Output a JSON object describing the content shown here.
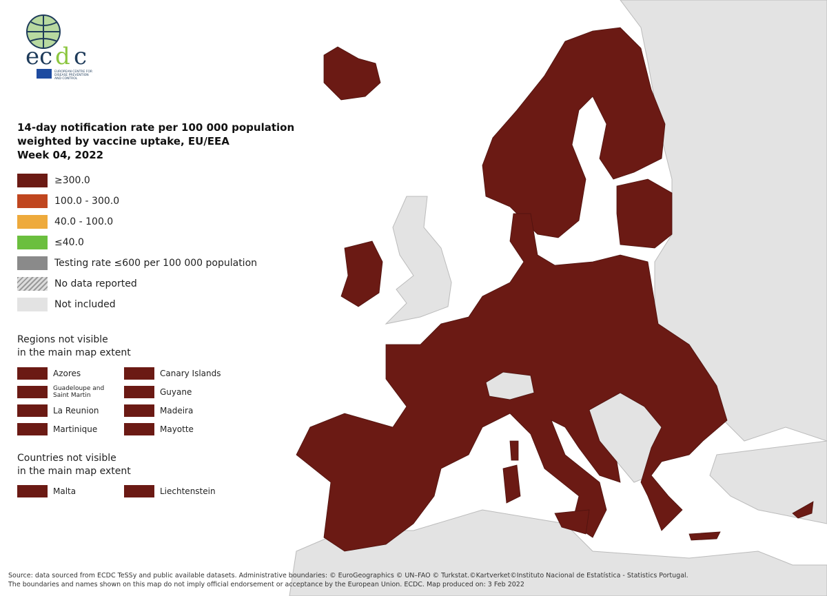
{
  "logo": {
    "text": "ecdc",
    "subtext": "EUROPEAN CENTRE FOR DISEASE PREVENTION AND CONTROL"
  },
  "title": {
    "line1": "14-day notification rate per 100 000 population",
    "line2": "weighted by vaccine uptake, EU/EEA",
    "line3": "Week 04, 2022"
  },
  "legend": [
    {
      "label": "≥300.0",
      "color": "#6b1a14"
    },
    {
      "label": "100.0 - 300.0",
      "color": "#c0461f"
    },
    {
      "label": "40.0 - 100.0",
      "color": "#eeaa3c"
    },
    {
      "label": "≤40.0",
      "color": "#6bbf3e"
    },
    {
      "label": "Testing rate ≤600 per 100 000 population",
      "color": "#8a8a8a"
    },
    {
      "label": "No data reported",
      "color": "hatched"
    },
    {
      "label": "Not included",
      "color": "#e3e3e3"
    }
  ],
  "regions": {
    "heading1": "Regions not visible",
    "heading2": "in the main map extent",
    "items": [
      "Azores",
      "Canary Islands",
      "Guadeloupe and Saint Martin",
      "Guyane",
      "La Reunion",
      "Madeira",
      "Martinique",
      "Mayotte"
    ]
  },
  "countries": {
    "heading1": "Countries not visible",
    "heading2": "in the main map extent",
    "items": [
      "Malta",
      "Liechtenstein"
    ]
  },
  "map": {
    "category_color": "#6b1a14",
    "not_included_color": "#e3e3e3",
    "sea_color": "#ffffff"
  },
  "footer": {
    "line1": "Source: data sourced from ECDC TeSSy and public available datasets. Administrative boundaries: © EuroGeographics © UN–FAO © Turkstat.©Kartverket©Instituto Nacional de Estatística - Statistics Portugal.",
    "line2": "The boundaries and names shown on this map do not imply official endorsement or acceptance by the European Union. ECDC. Map produced on: 3 Feb 2022"
  }
}
